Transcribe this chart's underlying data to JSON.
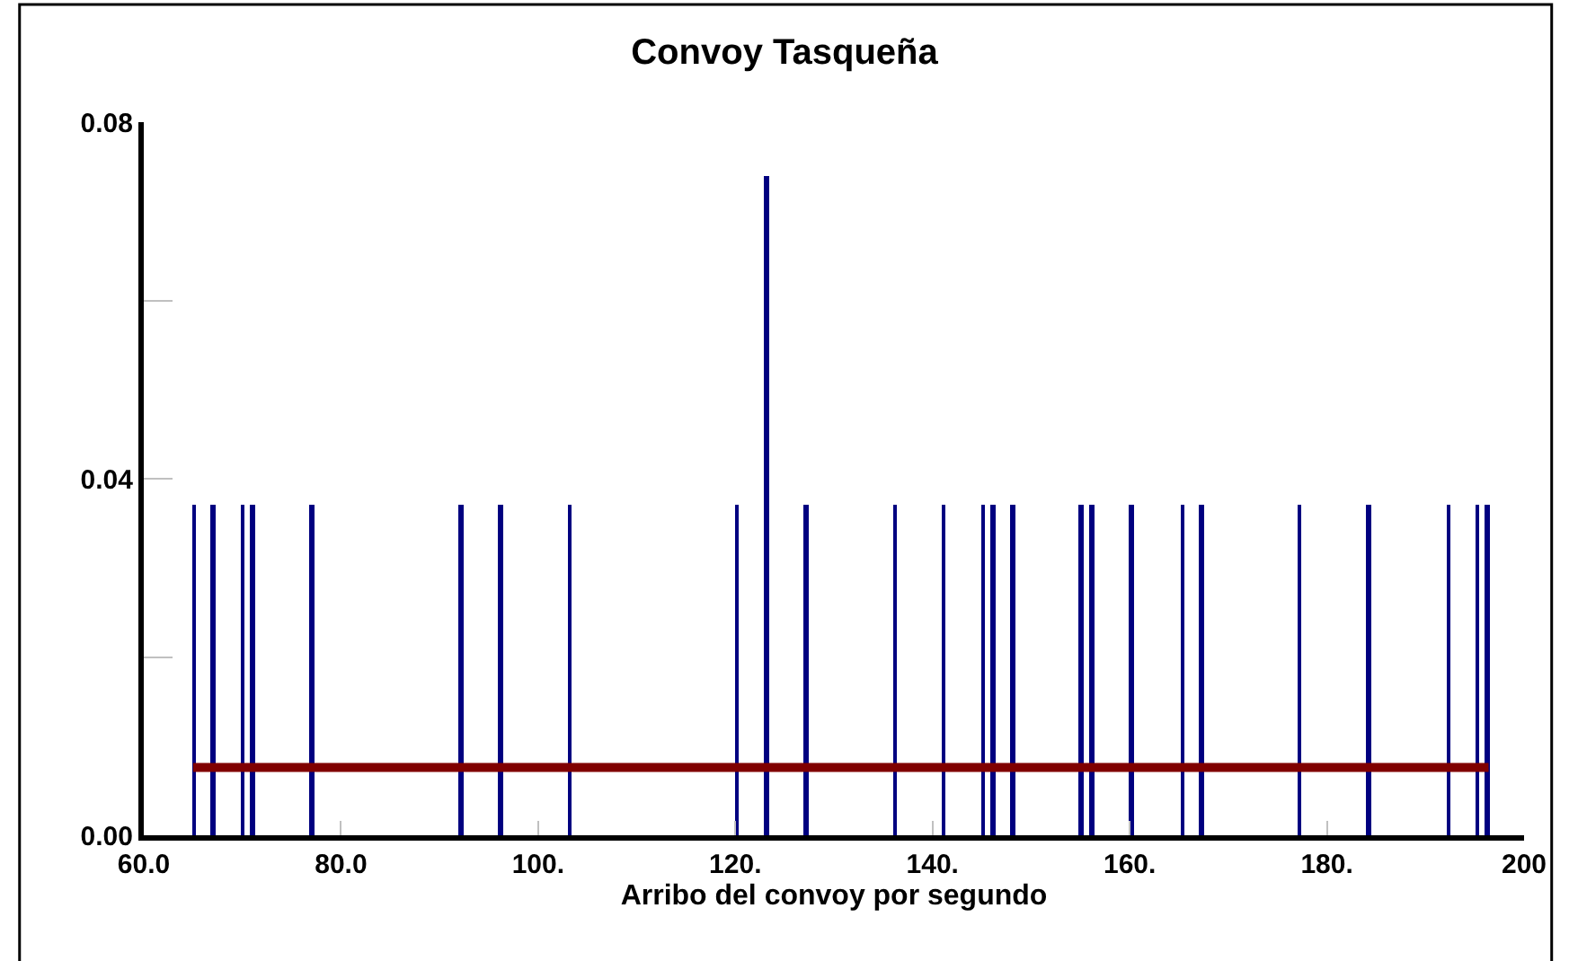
{
  "chart_data": {
    "type": "bar",
    "title": "Convoy Tasqueña",
    "xlabel": "Arribo del convoy por segundo",
    "series": [
      {
        "color": "#000080",
        "x": [
          65.2,
          67.1,
          70.1,
          71.1,
          77.1,
          92.2,
          96.2,
          103.2,
          120.2,
          123.2,
          127.2,
          136.2,
          141.2,
          145.2,
          146.2,
          148.2,
          155.1,
          156.2,
          160.2,
          165.4,
          167.3,
          177.3,
          184.3,
          192.4,
          195.3,
          196.3
        ],
        "values": [
          0.037,
          0.037,
          0.037,
          0.037,
          0.037,
          0.037,
          0.037,
          0.037,
          0.037,
          0.074,
          0.037,
          0.037,
          0.037,
          0.037,
          0.037,
          0.037,
          0.037,
          0.037,
          0.037,
          0.037,
          0.037,
          0.037,
          0.037,
          0.037,
          0.037,
          0.037
        ]
      },
      {
        "type": "line",
        "color": "#800000",
        "x": [
          65.0,
          196.4
        ],
        "values": [
          0.0076,
          0.0076
        ]
      }
    ],
    "xlim": [
      60,
      200
    ],
    "xticks": [
      {
        "value": 60,
        "label": "60.0"
      },
      {
        "value": 80,
        "label": "80.0"
      },
      {
        "value": 100,
        "label": "100."
      },
      {
        "value": 120,
        "label": "120."
      },
      {
        "value": 140,
        "label": "140."
      },
      {
        "value": 160,
        "label": "160."
      },
      {
        "value": 180,
        "label": "180."
      },
      200
    ],
    "ylim": [
      0,
      0.08
    ],
    "yticks": [
      {
        "value": 0,
        "label": "0.00"
      },
      {
        "value": 0.02,
        "label": null
      },
      {
        "value": 0.04,
        "label": "0.04"
      },
      {
        "value": 0.06,
        "label": null
      },
      {
        "value": 0.08,
        "label": "0.08"
      }
    ]
  }
}
